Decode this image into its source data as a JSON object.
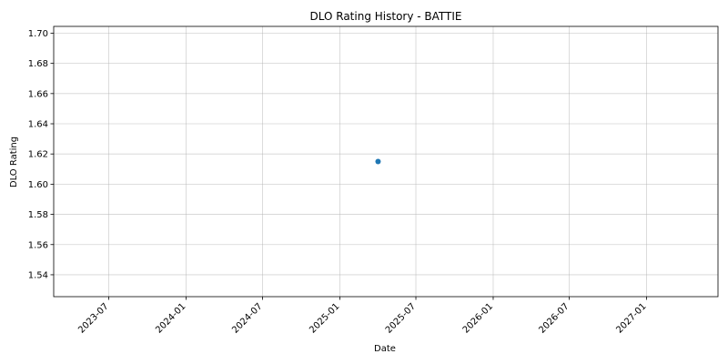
{
  "chart_data": {
    "type": "scatter",
    "title": "DLO Rating History - BATTIE",
    "xlabel": "Date",
    "ylabel": "DLO Rating",
    "grid": true,
    "xlim": [
      "2023-02-20",
      "2027-06-20"
    ],
    "ylim": [
      1.5255,
      1.7045
    ],
    "x_ticks": [
      "2023-07",
      "2024-01",
      "2024-07",
      "2025-01",
      "2025-07",
      "2026-01",
      "2026-07",
      "2027-01"
    ],
    "y_ticks": [
      1.54,
      1.56,
      1.58,
      1.6,
      1.62,
      1.64,
      1.66,
      1.68,
      1.7
    ],
    "y_tick_labels": [
      "1.54",
      "1.56",
      "1.58",
      "1.60",
      "1.62",
      "1.64",
      "1.66",
      "1.68",
      "1.70"
    ],
    "series": [
      {
        "color": "#1f77b4",
        "points": [
          {
            "x": "2025-04-02",
            "y": 1.615
          }
        ]
      }
    ]
  }
}
